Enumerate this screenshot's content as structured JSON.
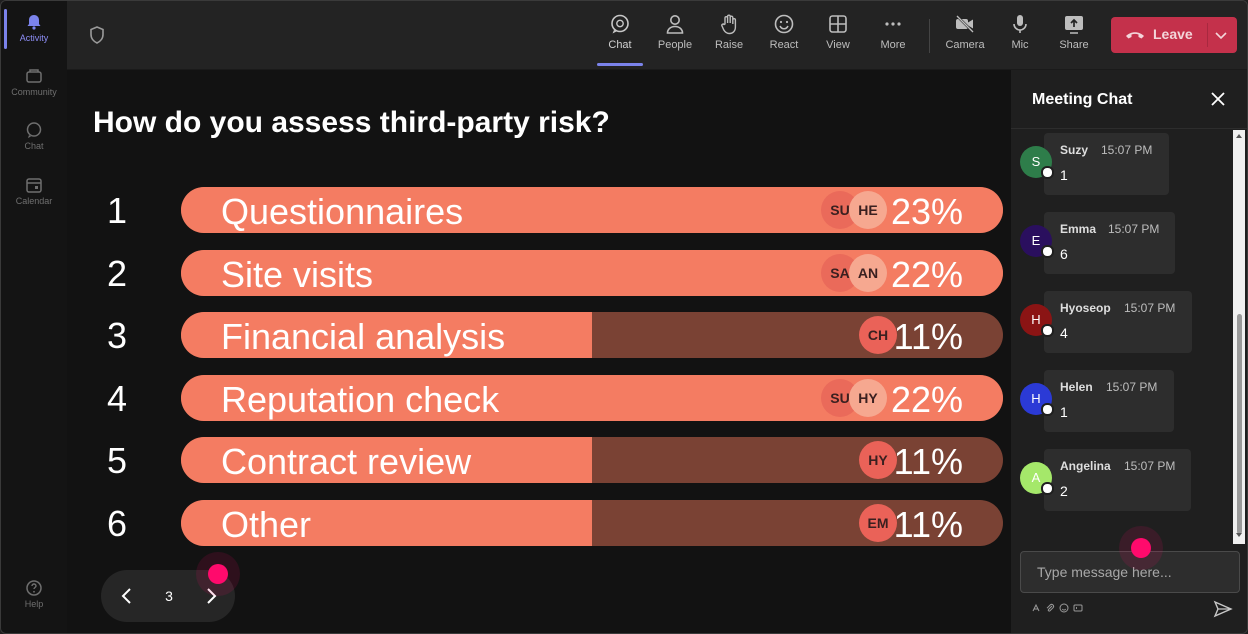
{
  "rail": {
    "items": [
      {
        "label": "Activity",
        "icon": "bell-icon",
        "active": true
      },
      {
        "label": "Community",
        "icon": "community-icon"
      },
      {
        "label": "Chat",
        "icon": "chat-icon"
      },
      {
        "label": "Calendar",
        "icon": "calendar-icon"
      }
    ],
    "help": {
      "label": "Help",
      "icon": "help-icon"
    }
  },
  "toolbar": {
    "buttons": [
      {
        "label": "Chat",
        "icon": "chat-icon",
        "active": true
      },
      {
        "label": "People",
        "icon": "people-icon"
      },
      {
        "label": "Raise",
        "icon": "raise-hand-icon"
      },
      {
        "label": "React",
        "icon": "smiley-icon"
      },
      {
        "label": "View",
        "icon": "grid-icon"
      },
      {
        "label": "More",
        "icon": "more-icon"
      },
      {
        "label": "Camera",
        "icon": "camera-off-icon"
      },
      {
        "label": "Mic",
        "icon": "mic-icon"
      },
      {
        "label": "Share",
        "icon": "share-icon"
      }
    ],
    "leave_label": "Leave"
  },
  "poll": {
    "question": "How do you assess third-party risk?",
    "options": [
      {
        "num": "1",
        "label": "Questionnaires",
        "percent_text": "23%",
        "fill": 1.0,
        "avatars": [
          "SU",
          "HE"
        ]
      },
      {
        "num": "2",
        "label": "Site visits",
        "percent_text": "22%",
        "fill": 1.0,
        "avatars": [
          "SA",
          "AN"
        ]
      },
      {
        "num": "3",
        "label": "Financial analysis",
        "percent_text": "11%",
        "fill": 0.5,
        "avatars": [
          "CH"
        ]
      },
      {
        "num": "4",
        "label": "Reputation check",
        "percent_text": "22%",
        "fill": 1.0,
        "avatars": [
          "SU",
          "HY"
        ]
      },
      {
        "num": "5",
        "label": "Contract review",
        "percent_text": "11%",
        "fill": 0.5,
        "avatars": [
          "HY"
        ]
      },
      {
        "num": "6",
        "label": "Other",
        "percent_text": "11%",
        "fill": 0.5,
        "avatars": [
          "EM"
        ]
      }
    ],
    "page_number": "3"
  },
  "chat": {
    "title": "Meeting Chat",
    "messages": [
      {
        "initial": "S",
        "name": "Suzy",
        "time": "15:07 PM",
        "text": "1",
        "color": "#2e7d4a"
      },
      {
        "initial": "E",
        "name": "Emma",
        "time": "15:07 PM",
        "text": "6",
        "color": "#2a0f5e"
      },
      {
        "initial": "H",
        "name": "Hyoseop",
        "time": "15:07 PM",
        "text": "4",
        "color": "#8b1414"
      },
      {
        "initial": "H",
        "name": "Helen",
        "time": "15:07 PM",
        "text": "1",
        "color": "#2b3ad6"
      },
      {
        "initial": "A",
        "name": "Angelina",
        "time": "15:07 PM",
        "text": "2",
        "color": "#a5e86a"
      }
    ],
    "input_placeholder": "Type message here..."
  }
}
